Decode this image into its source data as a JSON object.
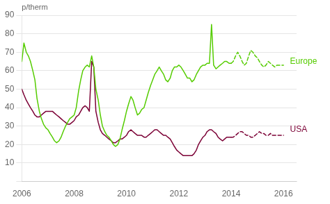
{
  "chart_data": {
    "type": "line",
    "y_label": "p/therm",
    "xlim": [
      2006.0,
      2016.5
    ],
    "ylim": [
      0,
      90
    ],
    "xticks": [
      2006,
      2008,
      2010,
      2012,
      2014,
      2016
    ],
    "yticks": [
      {
        "value": 0,
        "label": ""
      },
      10,
      20,
      30,
      40,
      50,
      60,
      70,
      80,
      90
    ],
    "grid": "y",
    "background_color": "#ffffff",
    "annotations": [
      {
        "text": "Europe",
        "x": 2016.25,
        "y": 65,
        "color": "#55cc00"
      },
      {
        "text": "USA",
        "x": 2016.25,
        "y": 28,
        "color": "#7b0035"
      }
    ],
    "series": [
      {
        "color": "#55cc00",
        "line_style": "solid",
        "x": [
          2006.0,
          2006.08,
          2006.17,
          2006.25,
          2006.33,
          2006.42,
          2006.5,
          2006.58,
          2006.67,
          2006.75,
          2006.83,
          2006.92,
          2007.0,
          2007.08,
          2007.17,
          2007.25,
          2007.33,
          2007.42,
          2007.5,
          2007.58,
          2007.67,
          2007.75,
          2007.83,
          2007.92,
          2008.0,
          2008.08,
          2008.17,
          2008.25,
          2008.33,
          2008.42,
          2008.5,
          2008.58,
          2008.67,
          2008.75,
          2008.83,
          2008.92,
          2009.0,
          2009.08,
          2009.17,
          2009.25,
          2009.33,
          2009.42,
          2009.5,
          2009.58,
          2009.67,
          2009.75,
          2009.83,
          2009.92,
          2010.0,
          2010.08,
          2010.17,
          2010.25,
          2010.33,
          2010.42,
          2010.5,
          2010.58,
          2010.67,
          2010.75,
          2010.83,
          2010.92,
          2011.0,
          2011.08,
          2011.17,
          2011.25,
          2011.33,
          2011.42,
          2011.5,
          2011.58,
          2011.67,
          2011.75,
          2011.83,
          2011.92,
          2012.0,
          2012.08,
          2012.17,
          2012.25,
          2012.33,
          2012.42,
          2012.5,
          2012.58,
          2012.67,
          2012.75,
          2012.83,
          2012.92,
          2013.0,
          2013.08,
          2013.17,
          2013.25,
          2013.33,
          2013.42,
          2013.5,
          2013.58,
          2013.67,
          2013.75,
          2013.83,
          2013.92,
          2014.0
        ],
        "values": [
          65,
          75,
          70,
          68,
          65,
          60,
          55,
          45,
          38,
          34,
          31,
          29,
          28,
          26,
          24,
          22,
          21,
          22,
          24,
          27,
          30,
          32,
          34,
          35,
          36,
          40,
          49,
          55,
          60,
          62,
          63,
          62,
          68,
          62,
          50,
          44,
          36,
          30,
          27,
          25,
          24,
          22,
          20,
          19,
          20,
          23,
          28,
          33,
          38,
          42,
          46,
          44,
          40,
          36,
          37,
          39,
          40,
          44,
          48,
          52,
          55,
          58,
          60,
          62,
          60,
          58,
          55,
          54,
          56,
          60,
          62,
          62,
          63,
          62,
          60,
          58,
          56,
          56,
          54,
          55,
          58,
          60,
          62,
          63,
          63,
          64,
          64,
          85,
          63,
          61,
          62,
          63,
          64,
          65,
          65,
          64,
          64
        ]
      },
      {
        "color": "#55cc00",
        "line_style": "dashed",
        "x": [
          2014.0,
          2014.08,
          2014.17,
          2014.25,
          2014.33,
          2014.42,
          2014.5,
          2014.58,
          2014.67,
          2014.75,
          2014.83,
          2014.92,
          2015.0,
          2015.08,
          2015.17,
          2015.25,
          2015.33,
          2015.42,
          2015.5,
          2015.58,
          2015.67,
          2015.75,
          2015.83,
          2015.92,
          2016.0
        ],
        "values": [
          64,
          65,
          68,
          70,
          68,
          65,
          63,
          64,
          68,
          71,
          70,
          68,
          67,
          65,
          63,
          62,
          63,
          65,
          64,
          63,
          62,
          63,
          63,
          63,
          63
        ]
      },
      {
        "color": "#7b0035",
        "line_style": "solid",
        "x": [
          2006.0,
          2006.08,
          2006.17,
          2006.25,
          2006.33,
          2006.42,
          2006.5,
          2006.58,
          2006.67,
          2006.75,
          2006.83,
          2006.92,
          2007.0,
          2007.08,
          2007.17,
          2007.25,
          2007.33,
          2007.42,
          2007.5,
          2007.58,
          2007.67,
          2007.75,
          2007.83,
          2007.92,
          2008.0,
          2008.08,
          2008.17,
          2008.25,
          2008.33,
          2008.42,
          2008.5,
          2008.58,
          2008.67,
          2008.75,
          2008.83,
          2008.92,
          2009.0,
          2009.08,
          2009.17,
          2009.25,
          2009.33,
          2009.42,
          2009.5,
          2009.58,
          2009.67,
          2009.75,
          2009.83,
          2009.92,
          2010.0,
          2010.08,
          2010.17,
          2010.25,
          2010.33,
          2010.42,
          2010.5,
          2010.58,
          2010.67,
          2010.75,
          2010.83,
          2010.92,
          2011.0,
          2011.08,
          2011.17,
          2011.25,
          2011.33,
          2011.42,
          2011.5,
          2011.58,
          2011.67,
          2011.75,
          2011.83,
          2011.92,
          2012.0,
          2012.08,
          2012.17,
          2012.25,
          2012.33,
          2012.42,
          2012.5,
          2012.58,
          2012.67,
          2012.75,
          2012.83,
          2012.92,
          2013.0,
          2013.08,
          2013.17,
          2013.25,
          2013.33,
          2013.42,
          2013.5,
          2013.58,
          2013.67,
          2013.75,
          2013.83,
          2013.92,
          2014.0
        ],
        "values": [
          50,
          47,
          44,
          42,
          40,
          38,
          36,
          35,
          35,
          36,
          37,
          38,
          38,
          38,
          38,
          37,
          36,
          35,
          34,
          33,
          32,
          31,
          31,
          32,
          33,
          35,
          36,
          38,
          40,
          41,
          40,
          38,
          65,
          62,
          38,
          32,
          28,
          26,
          25,
          24,
          23,
          22,
          21,
          21,
          22,
          23,
          23,
          24,
          25,
          27,
          28,
          27,
          26,
          25,
          25,
          25,
          24,
          24,
          25,
          26,
          27,
          28,
          28,
          27,
          26,
          25,
          25,
          24,
          23,
          21,
          19,
          17,
          16,
          15,
          14,
          14,
          14,
          14,
          14,
          15,
          17,
          20,
          22,
          24,
          25,
          27,
          28,
          28,
          27,
          26,
          24,
          23,
          22,
          23,
          24,
          24,
          24
        ]
      },
      {
        "color": "#7b0035",
        "line_style": "dashed",
        "x": [
          2014.0,
          2014.08,
          2014.17,
          2014.25,
          2014.33,
          2014.42,
          2014.5,
          2014.58,
          2014.67,
          2014.75,
          2014.83,
          2014.92,
          2015.0,
          2015.08,
          2015.17,
          2015.25,
          2015.33,
          2015.42,
          2015.5,
          2015.58,
          2015.67,
          2015.75,
          2015.83,
          2015.92,
          2016.0
        ],
        "values": [
          24,
          24,
          25,
          26,
          27,
          27,
          26,
          25,
          25,
          24,
          24,
          25,
          26,
          27,
          26,
          26,
          25,
          25,
          26,
          25,
          25,
          25,
          25,
          25,
          25
        ]
      }
    ]
  }
}
